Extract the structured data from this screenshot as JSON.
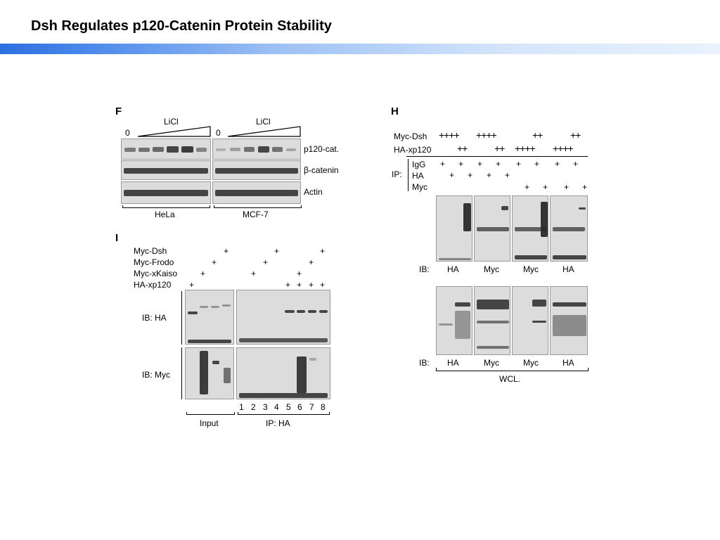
{
  "slide": {
    "title": "Dsh Regulates p120-Catenin Protein Stability"
  },
  "panelF": {
    "letter": "F",
    "zero": "0",
    "treatment": "LiCl",
    "rows": [
      "p120-cat.",
      "β-catenin",
      "Actin"
    ],
    "cells": [
      "HeLa",
      "MCF-7"
    ]
  },
  "panelH": {
    "letter": "H",
    "row1_label": "Myc-Dsh",
    "row1_a": "++++",
    "row1_b": "++++",
    "row1_c": "++",
    "row1_d": "++",
    "row2_label": "HA-xp120",
    "row2_a": "++",
    "row2_b": "++",
    "row2_c": "++++",
    "row2_d": "++++",
    "ip_label": "IP:",
    "ip_rows": [
      "IgG",
      "HA",
      "Myc"
    ],
    "plus": "+",
    "ib_prefix": "IB:",
    "ib_labels": [
      "HA",
      "Myc",
      "Myc",
      "HA"
    ],
    "wcl": "WCL."
  },
  "panelI": {
    "letter": "I",
    "rows": [
      "Myc-Dsh",
      "Myc-Frodo",
      "Myc-xKaiso",
      "HA-xp120"
    ],
    "plus": "+",
    "ib_ha": "IB: HA",
    "ib_myc": "IB: Myc",
    "lanes": [
      "1",
      "2",
      "3",
      "4",
      "5",
      "6",
      "7",
      "8"
    ],
    "input": "Input",
    "ip_ha": "IP: HA"
  }
}
